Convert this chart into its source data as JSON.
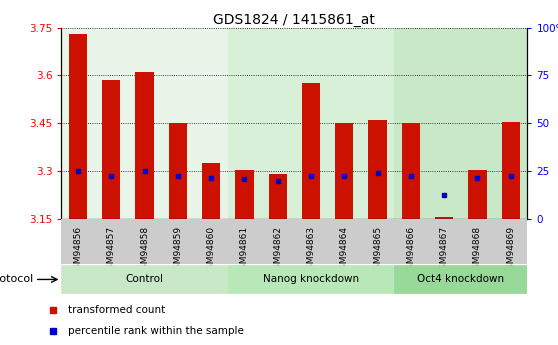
{
  "title": "GDS1824 / 1415861_at",
  "samples": [
    "GSM94856",
    "GSM94857",
    "GSM94858",
    "GSM94859",
    "GSM94860",
    "GSM94861",
    "GSM94862",
    "GSM94863",
    "GSM94864",
    "GSM94865",
    "GSM94866",
    "GSM94867",
    "GSM94868",
    "GSM94869"
  ],
  "red_values": [
    3.73,
    3.585,
    3.61,
    3.45,
    3.325,
    3.305,
    3.29,
    3.575,
    3.45,
    3.46,
    3.45,
    3.155,
    3.305,
    3.455
  ],
  "blue_values": [
    3.3,
    3.285,
    3.3,
    3.285,
    3.28,
    3.275,
    3.27,
    3.285,
    3.285,
    3.295,
    3.285,
    3.225,
    3.28,
    3.285
  ],
  "ylim_left": [
    3.15,
    3.75
  ],
  "ylim_right": [
    0,
    100
  ],
  "yticks_left": [
    3.15,
    3.3,
    3.45,
    3.6,
    3.75
  ],
  "yticks_right": [
    0,
    25,
    50,
    75,
    100
  ],
  "ytick_labels_left": [
    "3.15",
    "3.3",
    "3.45",
    "3.6",
    "3.75"
  ],
  "ytick_labels_right": [
    "0",
    "25",
    "50",
    "75",
    "100%"
  ],
  "bar_color": "#cc1100",
  "blue_color": "#0000cc",
  "base_value": 3.15,
  "bar_width": 0.55,
  "group_labels": [
    "Control",
    "Nanog knockdown",
    "Oct4 knockdown"
  ],
  "group_ranges": [
    [
      0,
      5
    ],
    [
      5,
      10
    ],
    [
      10,
      14
    ]
  ],
  "group_colors_plot": [
    "#e8f5e8",
    "#d8f0d8",
    "#c8e8c8"
  ],
  "group_colors_bar": [
    "#c8e8c8",
    "#c8e8c8",
    "#90ee90"
  ],
  "xtick_bg": "#cccccc",
  "legend_red_label": "transformed count",
  "legend_blue_label": "percentile rank within the sample",
  "protocol_label": "protocol"
}
